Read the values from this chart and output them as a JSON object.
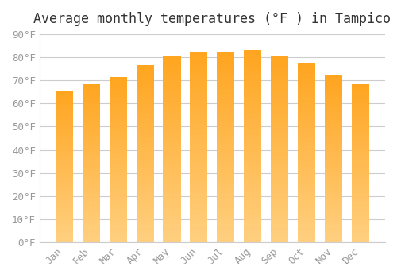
{
  "title": "Average monthly temperatures (°F ) in Tampico",
  "months": [
    "Jan",
    "Feb",
    "Mar",
    "Apr",
    "May",
    "Jun",
    "Jul",
    "Aug",
    "Sep",
    "Oct",
    "Nov",
    "Dec"
  ],
  "values": [
    65.5,
    68.5,
    71.5,
    76.5,
    80.5,
    82.5,
    82.0,
    83.0,
    80.5,
    77.5,
    72.0,
    68.5
  ],
  "bar_color_top": "#FFA500",
  "bar_color_bottom": "#FFD080",
  "background_color": "#ffffff",
  "grid_color": "#cccccc",
  "ylim": [
    0,
    90
  ],
  "yticks": [
    0,
    10,
    20,
    30,
    40,
    50,
    60,
    70,
    80,
    90
  ],
  "ytick_labels": [
    "0°F",
    "10°F",
    "20°F",
    "30°F",
    "40°F",
    "50°F",
    "60°F",
    "70°F",
    "80°F",
    "90°F"
  ],
  "title_fontsize": 12,
  "tick_fontsize": 9,
  "tick_color": "#999999",
  "spine_color": "#cccccc"
}
